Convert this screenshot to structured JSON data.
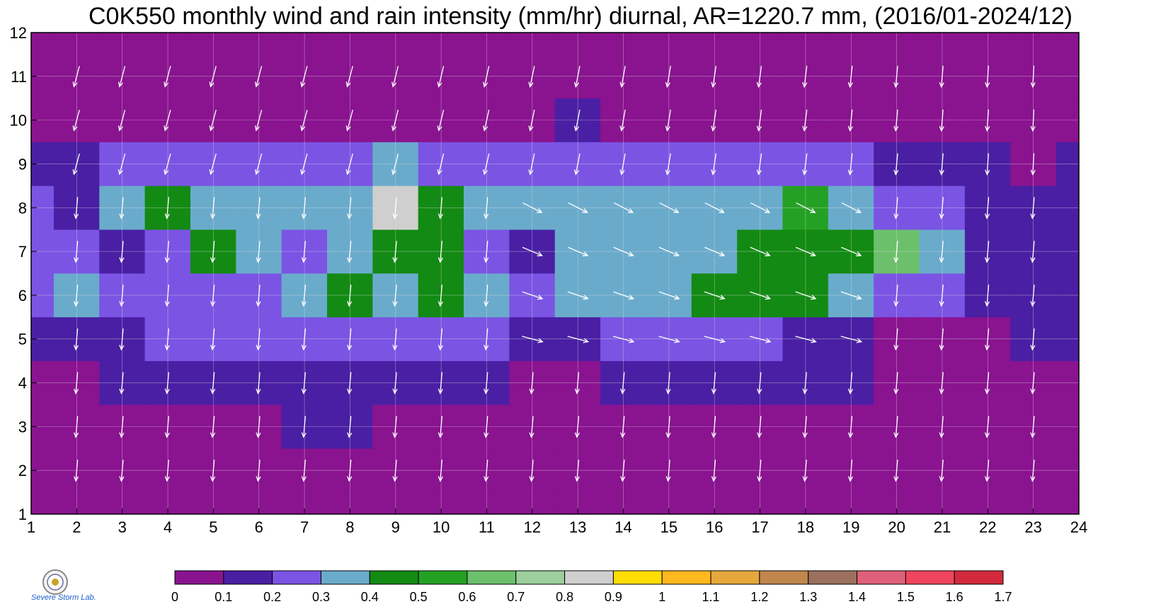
{
  "title": "C0K550 monthly wind and rain intensity (mm/hr) diurnal, AR=1220.7 mm, (2016/01-2024/12)",
  "logo_text": "Severe Storm Lab.",
  "chart_data": {
    "type": "heatmap",
    "title": "C0K550 monthly wind and rain intensity (mm/hr) diurnal, AR=1220.7 mm, (2016/01-2024/12)",
    "xlabel": "",
    "ylabel": "",
    "xlim": [
      1,
      24
    ],
    "ylim": [
      1,
      12
    ],
    "x_ticks": [
      1,
      2,
      3,
      4,
      5,
      6,
      7,
      8,
      9,
      10,
      11,
      12,
      13,
      14,
      15,
      16,
      17,
      18,
      19,
      20,
      21,
      22,
      23,
      24
    ],
    "y_ticks": [
      1,
      2,
      3,
      4,
      5,
      6,
      7,
      8,
      9,
      10,
      11,
      12
    ],
    "grid": true,
    "colorbar": {
      "levels": [
        0,
        0.1,
        0.2,
        0.3,
        0.4,
        0.5,
        0.6,
        0.7,
        0.8,
        0.9,
        1,
        1.1,
        1.2,
        1.3,
        1.4,
        1.5,
        1.6,
        1.7
      ],
      "colors": [
        "#8a1390",
        "#4a1fa4",
        "#7b54e4",
        "#6aabcc",
        "#138a13",
        "#24a124",
        "#6cc06c",
        "#9ccf9c",
        "#cfcfcf",
        "#ffdd00",
        "#ffb81e",
        "#e6a83c",
        "#c0864e",
        "#9c705c",
        "#e0607a",
        "#f0455e",
        "#d22a3c"
      ]
    },
    "rain_intensity_mm_per_hr": [
      [
        0.05,
        0.05,
        0.05,
        0.05,
        0.05,
        0.05,
        0.05,
        0.05,
        0.05,
        0.05,
        0.05,
        0.05,
        0.05,
        0.05,
        0.05,
        0.05,
        0.05,
        0.05,
        0.05,
        0.05,
        0.05,
        0.05,
        0.05,
        0.05
      ],
      [
        0.05,
        0.05,
        0.05,
        0.05,
        0.05,
        0.05,
        0.05,
        0.05,
        0.05,
        0.05,
        0.05,
        0.05,
        0.05,
        0.05,
        0.05,
        0.05,
        0.05,
        0.05,
        0.05,
        0.05,
        0.05,
        0.05,
        0.05,
        0.05
      ],
      [
        0.05,
        0.05,
        0.05,
        0.05,
        0.05,
        0.05,
        0.15,
        0.15,
        0.05,
        0.05,
        0.05,
        0.05,
        0.05,
        0.05,
        0.05,
        0.05,
        0.05,
        0.05,
        0.05,
        0.05,
        0.05,
        0.05,
        0.05,
        0.05
      ],
      [
        0.05,
        0.05,
        0.15,
        0.15,
        0.15,
        0.15,
        0.15,
        0.15,
        0.15,
        0.15,
        0.15,
        0.05,
        0.05,
        0.15,
        0.15,
        0.15,
        0.15,
        0.15,
        0.15,
        0.05,
        0.05,
        0.05,
        0.05,
        0.05
      ],
      [
        0.15,
        0.15,
        0.15,
        0.25,
        0.25,
        0.25,
        0.25,
        0.25,
        0.25,
        0.25,
        0.25,
        0.15,
        0.15,
        0.25,
        0.25,
        0.25,
        0.25,
        0.15,
        0.15,
        0.05,
        0.05,
        0.05,
        0.15,
        0.15
      ],
      [
        0.25,
        0.35,
        0.25,
        0.25,
        0.25,
        0.25,
        0.35,
        0.45,
        0.35,
        0.45,
        0.35,
        0.25,
        0.35,
        0.35,
        0.35,
        0.45,
        0.45,
        0.45,
        0.35,
        0.25,
        0.25,
        0.15,
        0.15,
        0.15
      ],
      [
        0.25,
        0.25,
        0.15,
        0.25,
        0.45,
        0.35,
        0.25,
        0.35,
        0.45,
        0.45,
        0.25,
        0.15,
        0.35,
        0.35,
        0.35,
        0.35,
        0.45,
        0.45,
        0.45,
        0.65,
        0.35,
        0.15,
        0.15,
        0.15
      ],
      [
        0.25,
        0.15,
        0.35,
        0.45,
        0.35,
        0.35,
        0.35,
        0.35,
        0.85,
        0.45,
        0.35,
        0.35,
        0.35,
        0.35,
        0.35,
        0.35,
        0.35,
        0.55,
        0.35,
        0.25,
        0.25,
        0.15,
        0.15,
        0.15
      ],
      [
        0.15,
        0.15,
        0.25,
        0.25,
        0.25,
        0.25,
        0.25,
        0.25,
        0.35,
        0.25,
        0.25,
        0.25,
        0.25,
        0.25,
        0.25,
        0.25,
        0.25,
        0.25,
        0.25,
        0.15,
        0.15,
        0.15,
        0.05,
        0.15
      ],
      [
        0.05,
        0.05,
        0.05,
        0.05,
        0.05,
        0.05,
        0.05,
        0.05,
        0.05,
        0.05,
        0.05,
        0.05,
        0.15,
        0.05,
        0.05,
        0.05,
        0.05,
        0.05,
        0.05,
        0.05,
        0.05,
        0.05,
        0.05,
        0.05
      ],
      [
        0.05,
        0.05,
        0.05,
        0.05,
        0.05,
        0.05,
        0.05,
        0.05,
        0.05,
        0.05,
        0.05,
        0.05,
        0.05,
        0.05,
        0.05,
        0.05,
        0.05,
        0.05,
        0.05,
        0.05,
        0.05,
        0.05,
        0.05,
        0.05
      ],
      [
        0.05,
        0.05,
        0.05,
        0.05,
        0.05,
        0.05,
        0.05,
        0.05,
        0.05,
        0.05,
        0.05,
        0.05,
        0.05,
        0.05,
        0.05,
        0.05,
        0.05,
        0.05,
        0.05,
        0.05,
        0.05,
        0.05,
        0.05,
        0.05
      ]
    ],
    "wind_vector_color": "#ffffff"
  }
}
